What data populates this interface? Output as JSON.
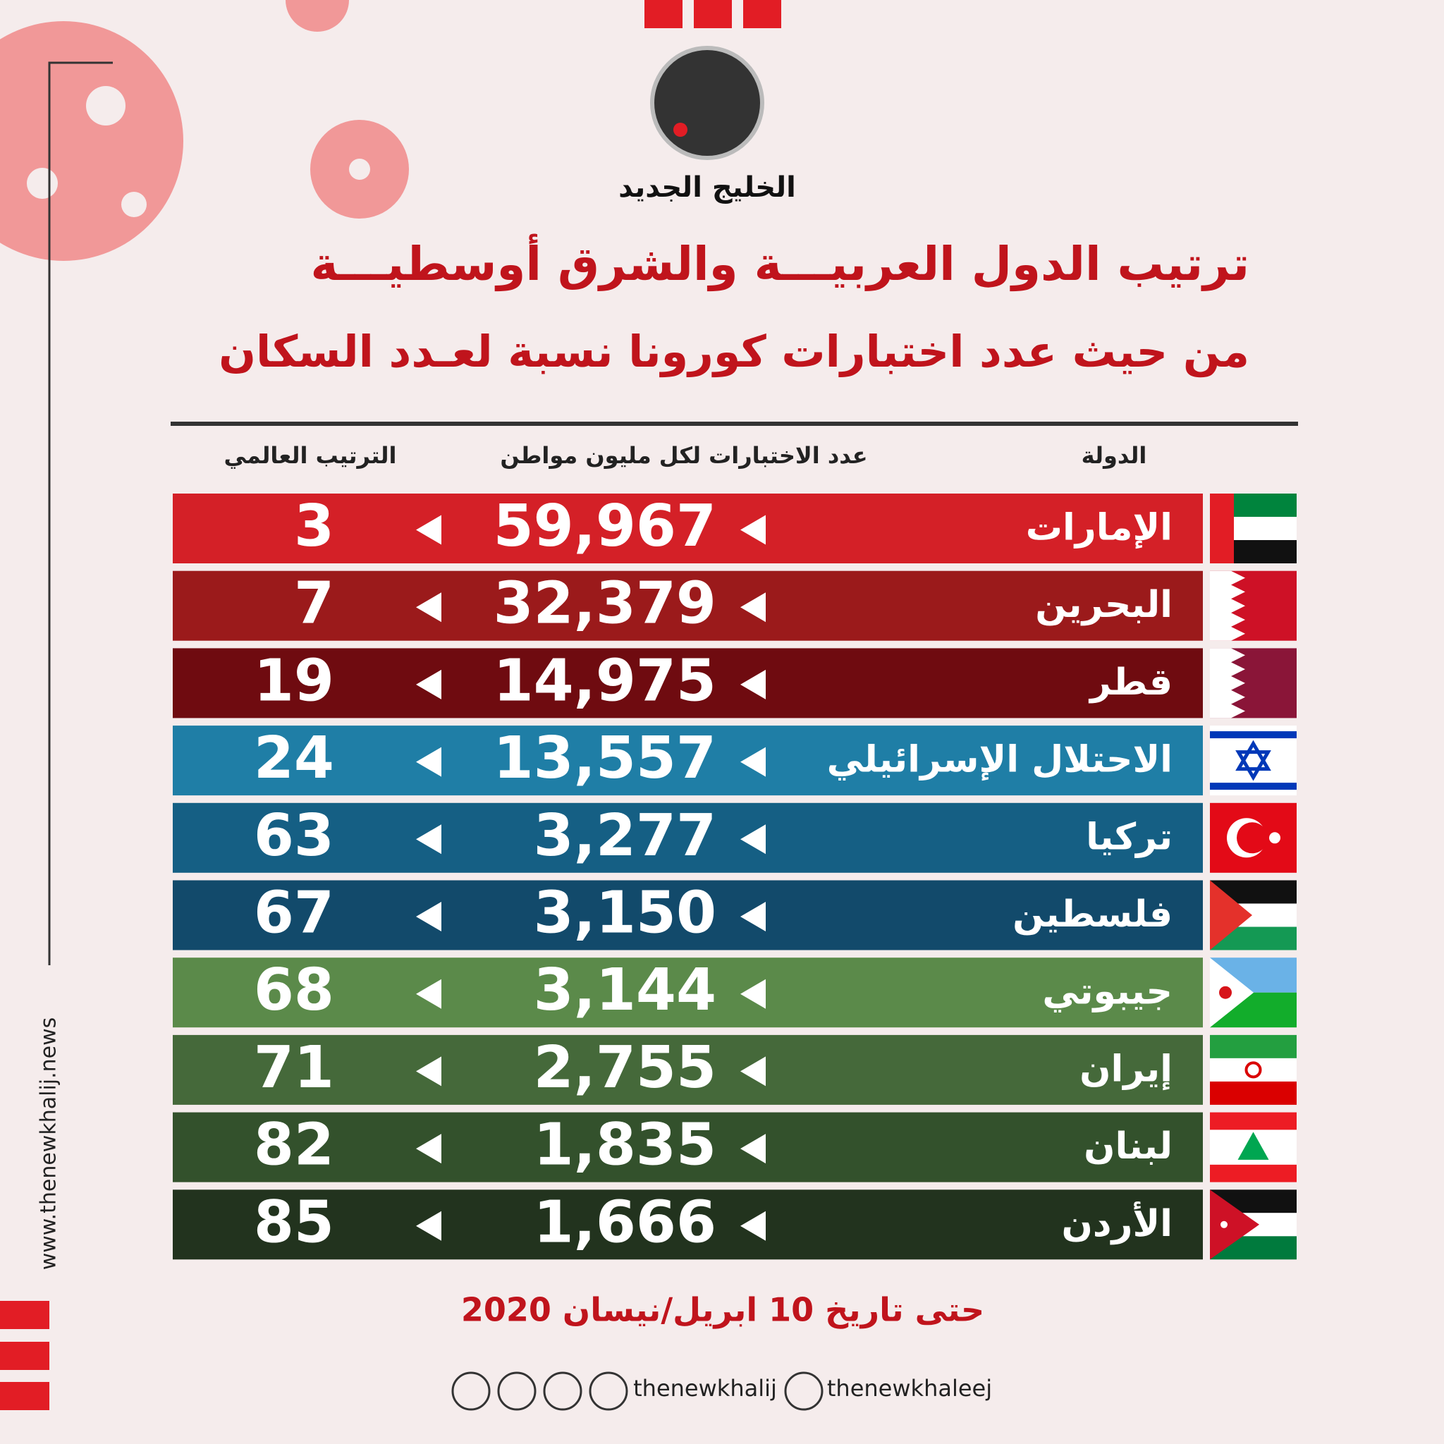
{
  "header": {
    "logo_text": "الخليج الجديد",
    "title_line1": "ترتيب الدول العربيـــة والشرق أوسطيـــة",
    "title_line2": "من حيث عدد اختبارات كورونا نسبة لعـدد السكان"
  },
  "table": {
    "columns": [
      "الدولة",
      "عدد الاختبارات لكل مليون مواطن",
      "الترتيب العالمي"
    ],
    "rows": [
      [
        "الإمارات",
        "59,967",
        "3"
      ],
      [
        "البحرين",
        "32,379",
        "7"
      ],
      [
        "قطر",
        "14,975",
        "19"
      ],
      [
        "الاحتلال الإسرائيلي",
        "13,557",
        "24"
      ],
      [
        "تركيا",
        "3,277",
        "63"
      ],
      [
        "فلسطين",
        "3,150",
        "67"
      ],
      [
        "جيبوتي",
        "3,144",
        "68"
      ],
      [
        "إيران",
        "2,755",
        "71"
      ],
      [
        "لبنان",
        "1,835",
        "82"
      ],
      [
        "الأردن",
        "1,666",
        "85"
      ]
    ]
  },
  "footer": {
    "date_note": "حتى تاريخ 10 ابريل/نيسان 2020",
    "handle_1": "thenewkhalij",
    "handle_2": "thenewkhaleej",
    "website": "www.thenewkhalij.news"
  }
}
